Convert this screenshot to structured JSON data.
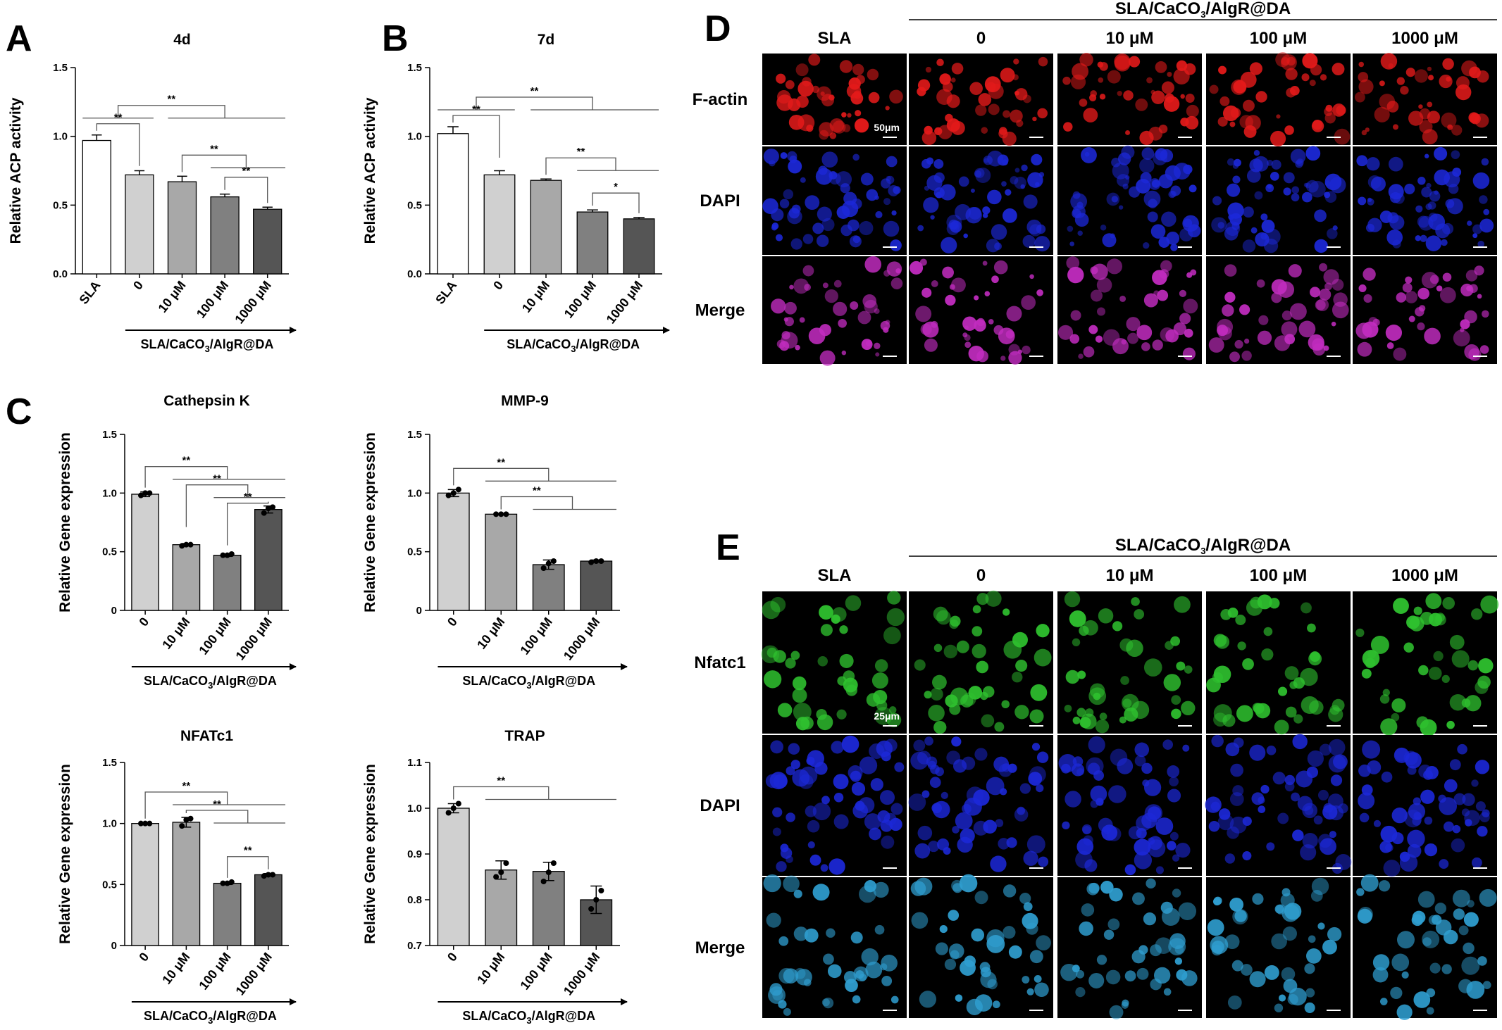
{
  "panels": {
    "A": "A",
    "B": "B",
    "C": "C",
    "D": "D",
    "E": "E"
  },
  "group_label_parts": {
    "pre": "SLA/CaCO",
    "sub": "3",
    "post": "/AlgR@DA"
  },
  "colors": {
    "bars": [
      "#ffffff",
      "#d0d0d0",
      "#a8a8a8",
      "#808080",
      "#555555"
    ],
    "F-actin": "#e41a1a",
    "DAPI": "#1c28d8",
    "Nfatc1": "#2fc22f",
    "background": "#000000"
  },
  "chart_data": [
    {
      "id": "A",
      "type": "bar",
      "title": "4d",
      "ylabel": "Relative ACP activity",
      "categories": [
        "SLA",
        "0",
        "10 μM",
        "100 μM",
        "1000 μM"
      ],
      "values": [
        0.97,
        0.72,
        0.67,
        0.56,
        0.47
      ],
      "errors": [
        0.04,
        0.03,
        0.04,
        0.02,
        0.015
      ],
      "ylim": [
        0,
        1.5
      ],
      "yticks": [
        "0.0",
        "0.5",
        "1.0",
        "1.5"
      ],
      "group_label": "SLA/CaCO3/AlgR@DA",
      "significance": [
        {
          "label": "**",
          "left": [
            0,
            1
          ],
          "right": [
            2,
            3,
            4
          ]
        },
        {
          "label": "**",
          "left": [
            0
          ],
          "right": [
            1
          ]
        },
        {
          "label": "**",
          "left": [
            2
          ],
          "right": [
            3,
            4
          ]
        },
        {
          "label": "**",
          "left": [
            3
          ],
          "right": [
            4
          ]
        }
      ]
    },
    {
      "id": "B",
      "type": "bar",
      "title": "7d",
      "ylabel": "Relative ACP activity",
      "categories": [
        "SLA",
        "0",
        "10 μM",
        "100 μM",
        "1000 μM"
      ],
      "values": [
        1.02,
        0.72,
        0.68,
        0.45,
        0.4
      ],
      "errors": [
        0.05,
        0.03,
        0.01,
        0.015,
        0.01
      ],
      "ylim": [
        0,
        1.5
      ],
      "yticks": [
        "0.0",
        "0.5",
        "1.0",
        "1.5"
      ],
      "group_label": "SLA/CaCO3/AlgR@DA",
      "significance": [
        {
          "label": "**",
          "left": [
            0,
            1
          ],
          "right": [
            2,
            3,
            4
          ]
        },
        {
          "label": "**",
          "left": [
            0
          ],
          "right": [
            1
          ]
        },
        {
          "label": "**",
          "left": [
            2
          ],
          "right": [
            3,
            4
          ]
        },
        {
          "label": "*",
          "left": [
            3
          ],
          "right": [
            4
          ]
        }
      ]
    },
    {
      "id": "C1",
      "type": "bar",
      "title": "Cathepsin K",
      "ylabel": "Relative  Gene expression",
      "categories": [
        "0",
        "10 μM",
        "100 μM",
        "1000 μM"
      ],
      "values": [
        0.99,
        0.56,
        0.47,
        0.86
      ],
      "errors": [
        0.02,
        0.01,
        0.01,
        0.03
      ],
      "points": [
        [
          0.98,
          1.0,
          1.0
        ],
        [
          0.55,
          0.56,
          0.56
        ],
        [
          0.47,
          0.47,
          0.48
        ],
        [
          0.83,
          0.87,
          0.88
        ]
      ],
      "ylim": [
        0,
        1.5
      ],
      "yticks": [
        "0",
        "0.5",
        "1.0",
        "1.5"
      ],
      "group_label": "SLA/CaCO3/AlgR@DA",
      "significance": [
        {
          "label": "**",
          "left": [
            0
          ],
          "right": [
            1,
            2,
            3
          ]
        },
        {
          "label": "**",
          "left": [
            1
          ],
          "right": [
            2,
            3
          ]
        },
        {
          "label": "**",
          "left": [
            2
          ],
          "right": [
            3
          ]
        }
      ]
    },
    {
      "id": "C2",
      "type": "bar",
      "title": "MMP-9",
      "ylabel": "Relative  Gene expression",
      "categories": [
        "0",
        "10 μM",
        "100 μM",
        "1000 μM"
      ],
      "values": [
        1.0,
        0.82,
        0.39,
        0.42
      ],
      "errors": [
        0.03,
        0.005,
        0.04,
        0.01
      ],
      "points": [
        [
          0.98,
          1.0,
          1.03
        ],
        [
          0.82,
          0.82,
          0.82
        ],
        [
          0.36,
          0.4,
          0.42
        ],
        [
          0.41,
          0.42,
          0.42
        ]
      ],
      "ylim": [
        0,
        1.5
      ],
      "yticks": [
        "0",
        "0.5",
        "1.0",
        "1.5"
      ],
      "group_label": "SLA/CaCO3/AlgR@DA",
      "significance": [
        {
          "label": "**",
          "left": [
            0
          ],
          "right": [
            1,
            2,
            3
          ]
        },
        {
          "label": "**",
          "left": [
            1
          ],
          "right": [
            2,
            3
          ]
        }
      ]
    },
    {
      "id": "C3",
      "type": "bar",
      "title": "NFATc1",
      "ylabel": "Relative  Gene expression",
      "categories": [
        "0",
        "10 μM",
        "100 μM",
        "1000 μM"
      ],
      "values": [
        1.0,
        1.01,
        0.51,
        0.58
      ],
      "errors": [
        0.005,
        0.04,
        0.01,
        0.01
      ],
      "points": [
        [
          1.0,
          1.0,
          1.0
        ],
        [
          0.98,
          1.03,
          1.04
        ],
        [
          0.51,
          0.51,
          0.52
        ],
        [
          0.57,
          0.58,
          0.58
        ]
      ],
      "ylim": [
        0,
        1.5
      ],
      "yticks": [
        "0",
        "0.5",
        "1.0",
        "1.5"
      ],
      "group_label": "SLA/CaCO3/AlgR@DA",
      "significance": [
        {
          "label": "**",
          "left": [
            0
          ],
          "right": [
            1,
            2,
            3
          ]
        },
        {
          "label": "**",
          "left": [
            1
          ],
          "right": [
            2,
            3
          ]
        },
        {
          "label": "**",
          "left": [
            2
          ],
          "right": [
            3
          ]
        }
      ]
    },
    {
      "id": "C4",
      "type": "bar",
      "title": "TRAP",
      "ylabel": "Relative  Gene expression",
      "categories": [
        "0",
        "10 μM",
        "100 μM",
        "1000 μM"
      ],
      "values": [
        1.0,
        0.865,
        0.862,
        0.8
      ],
      "errors": [
        0.01,
        0.02,
        0.02,
        0.03
      ],
      "points": [
        [
          0.99,
          1.0,
          1.01
        ],
        [
          0.85,
          0.86,
          0.88
        ],
        [
          0.84,
          0.86,
          0.88
        ],
        [
          0.78,
          0.8,
          0.82
        ]
      ],
      "ylim": [
        0.7,
        1.1
      ],
      "yticks": [
        "0.7",
        "0.8",
        "0.9",
        "1.0",
        "1.1"
      ],
      "group_label": "SLA/CaCO3/AlgR@DA",
      "significance": [
        {
          "label": "**",
          "left": [
            0
          ],
          "right": [
            1,
            2,
            3
          ]
        }
      ]
    }
  ],
  "micrographs": [
    {
      "id": "D",
      "group_label": "SLA/CaCO3/AlgR@DA",
      "columns": [
        "SLA",
        "0",
        "10 μM",
        "100 μM",
        "1000 μM"
      ],
      "rows": [
        "F-actin",
        "DAPI",
        "Merge"
      ],
      "scale_bar": "50μm"
    },
    {
      "id": "E",
      "group_label": "SLA/CaCO3/AlgR@DA",
      "columns": [
        "SLA",
        "0",
        "10 μM",
        "100 μM",
        "1000 μM"
      ],
      "rows": [
        "Nfatc1",
        "DAPI",
        "Merge"
      ],
      "scale_bar": "25μm"
    }
  ]
}
